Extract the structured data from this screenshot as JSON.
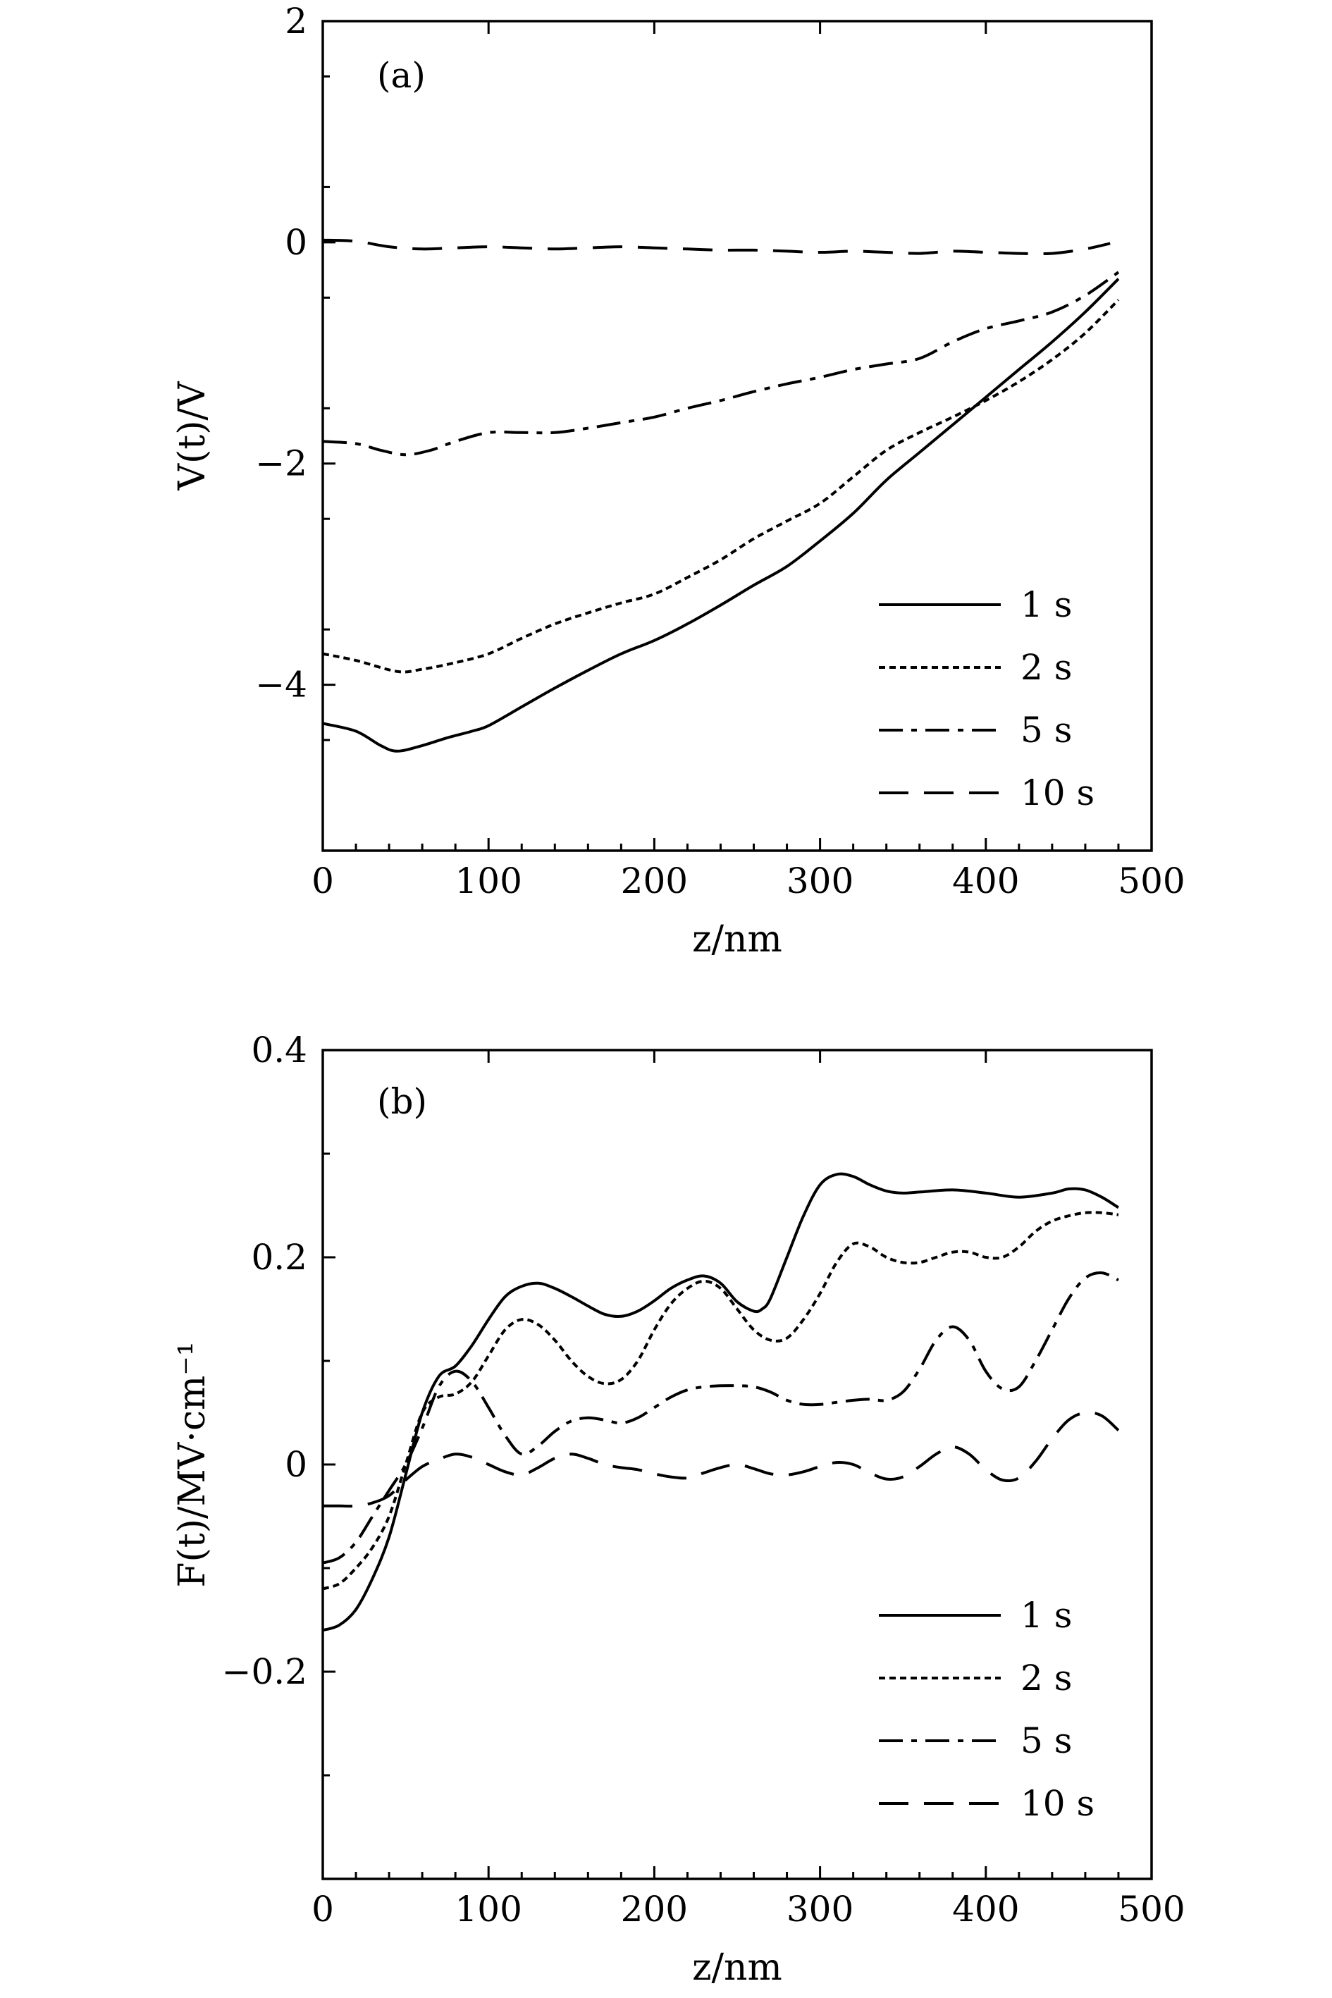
{
  "chart_data": [
    {
      "type": "line",
      "panel_label": "(a)",
      "xlabel": "z/nm",
      "ylabel": "V(t)/V",
      "xlim": [
        0,
        500
      ],
      "ylim": [
        -5.5,
        2
      ],
      "x_ticks": [
        0,
        100,
        200,
        300,
        400,
        500
      ],
      "y_ticks": [
        2,
        0,
        -2,
        -4
      ],
      "x_tick_labels": [
        "0",
        "100",
        "200",
        "300",
        "400",
        "500"
      ],
      "y_tick_labels": [
        "2",
        "0",
        "−2",
        "−4"
      ],
      "grid": false,
      "legend_position": "bottom-right",
      "series": [
        {
          "name": "1 s",
          "style": "solid",
          "x": [
            0,
            20,
            35,
            45,
            60,
            75,
            90,
            100,
            120,
            140,
            160,
            180,
            200,
            220,
            240,
            260,
            280,
            300,
            320,
            340,
            360,
            380,
            400,
            420,
            440,
            460,
            480
          ],
          "y": [
            -4.35,
            -4.42,
            -4.55,
            -4.6,
            -4.55,
            -4.48,
            -4.42,
            -4.37,
            -4.2,
            -4.03,
            -3.87,
            -3.72,
            -3.6,
            -3.45,
            -3.28,
            -3.1,
            -2.93,
            -2.7,
            -2.45,
            -2.15,
            -1.9,
            -1.65,
            -1.4,
            -1.15,
            -0.9,
            -0.63,
            -0.33
          ]
        },
        {
          "name": "2 s",
          "style": "dotted",
          "x": [
            0,
            20,
            45,
            60,
            80,
            100,
            120,
            140,
            160,
            180,
            200,
            220,
            240,
            260,
            280,
            300,
            320,
            340,
            360,
            380,
            400,
            420,
            440,
            460,
            480
          ],
          "y": [
            -3.72,
            -3.78,
            -3.88,
            -3.86,
            -3.8,
            -3.72,
            -3.58,
            -3.45,
            -3.35,
            -3.26,
            -3.18,
            -3.03,
            -2.87,
            -2.68,
            -2.52,
            -2.36,
            -2.12,
            -1.88,
            -1.72,
            -1.58,
            -1.43,
            -1.26,
            -1.06,
            -0.82,
            -0.52
          ]
        },
        {
          "name": "5 s",
          "style": "dashdot",
          "x": [
            0,
            20,
            35,
            50,
            65,
            80,
            100,
            120,
            140,
            160,
            180,
            200,
            220,
            240,
            260,
            280,
            300,
            320,
            340,
            360,
            380,
            400,
            420,
            440,
            460,
            480
          ],
          "y": [
            -1.8,
            -1.82,
            -1.88,
            -1.92,
            -1.88,
            -1.8,
            -1.72,
            -1.72,
            -1.72,
            -1.68,
            -1.63,
            -1.58,
            -1.5,
            -1.43,
            -1.35,
            -1.28,
            -1.22,
            -1.15,
            -1.1,
            -1.05,
            -0.9,
            -0.78,
            -0.71,
            -0.63,
            -0.48,
            -0.27
          ]
        },
        {
          "name": "10 s",
          "style": "dashed",
          "x": [
            0,
            20,
            40,
            60,
            80,
            100,
            120,
            140,
            160,
            180,
            200,
            220,
            240,
            260,
            280,
            300,
            320,
            340,
            360,
            380,
            400,
            420,
            440,
            460,
            475
          ],
          "y": [
            0.02,
            0.01,
            -0.04,
            -0.06,
            -0.05,
            -0.04,
            -0.05,
            -0.06,
            -0.05,
            -0.04,
            -0.05,
            -0.06,
            -0.07,
            -0.07,
            -0.08,
            -0.09,
            -0.08,
            -0.09,
            -0.1,
            -0.08,
            -0.09,
            -0.1,
            -0.1,
            -0.06,
            -0.01
          ]
        }
      ]
    },
    {
      "type": "line",
      "panel_label": "(b)",
      "xlabel": "z/nm",
      "ylabel": "F(t)/MV·cm⁻¹",
      "xlim": [
        0,
        500
      ],
      "ylim": [
        -0.4,
        0.4
      ],
      "x_ticks": [
        0,
        100,
        200,
        300,
        400,
        500
      ],
      "y_ticks": [
        0.4,
        0.2,
        0,
        -0.2
      ],
      "x_tick_labels": [
        "0",
        "100",
        "200",
        "300",
        "400",
        "500"
      ],
      "y_tick_labels": [
        "0.4",
        "0.2",
        "0",
        "−0.2"
      ],
      "grid": false,
      "legend_position": "bottom-right",
      "series": [
        {
          "name": "1 s",
          "style": "solid",
          "x": [
            0,
            10,
            20,
            30,
            40,
            50,
            60,
            70,
            80,
            90,
            100,
            110,
            120,
            130,
            140,
            150,
            160,
            170,
            180,
            190,
            200,
            210,
            220,
            230,
            240,
            250,
            260,
            265,
            270,
            280,
            290,
            300,
            310,
            320,
            330,
            340,
            350,
            360,
            380,
            400,
            420,
            440,
            450,
            460,
            470,
            480
          ],
          "y": [
            -0.16,
            -0.155,
            -0.14,
            -0.11,
            -0.07,
            -0.01,
            0.05,
            0.085,
            0.095,
            0.115,
            0.14,
            0.162,
            0.172,
            0.175,
            0.17,
            0.162,
            0.153,
            0.145,
            0.143,
            0.148,
            0.158,
            0.17,
            0.178,
            0.182,
            0.175,
            0.157,
            0.148,
            0.15,
            0.16,
            0.2,
            0.24,
            0.27,
            0.28,
            0.278,
            0.27,
            0.264,
            0.262,
            0.263,
            0.265,
            0.262,
            0.258,
            0.262,
            0.266,
            0.265,
            0.258,
            0.248
          ]
        },
        {
          "name": "2 s",
          "style": "dotted",
          "x": [
            0,
            10,
            20,
            30,
            40,
            50,
            60,
            70,
            80,
            90,
            100,
            110,
            120,
            130,
            140,
            150,
            160,
            170,
            180,
            190,
            200,
            210,
            220,
            230,
            240,
            250,
            260,
            270,
            280,
            290,
            300,
            310,
            320,
            330,
            340,
            350,
            360,
            370,
            380,
            390,
            400,
            410,
            420,
            430,
            440,
            450,
            460,
            470,
            480
          ],
          "y": [
            -0.12,
            -0.115,
            -0.1,
            -0.08,
            -0.05,
            0.0,
            0.05,
            0.065,
            0.068,
            0.08,
            0.105,
            0.13,
            0.14,
            0.135,
            0.12,
            0.1,
            0.085,
            0.078,
            0.082,
            0.1,
            0.13,
            0.155,
            0.17,
            0.177,
            0.17,
            0.15,
            0.13,
            0.12,
            0.122,
            0.14,
            0.165,
            0.195,
            0.213,
            0.21,
            0.2,
            0.195,
            0.195,
            0.2,
            0.205,
            0.205,
            0.2,
            0.2,
            0.21,
            0.225,
            0.235,
            0.24,
            0.243,
            0.243,
            0.241
          ]
        },
        {
          "name": "5 s",
          "style": "dashdot",
          "x": [
            0,
            10,
            20,
            30,
            40,
            50,
            60,
            70,
            80,
            90,
            100,
            110,
            120,
            130,
            140,
            150,
            160,
            170,
            180,
            190,
            200,
            210,
            220,
            230,
            240,
            250,
            260,
            270,
            280,
            290,
            300,
            310,
            320,
            330,
            340,
            350,
            360,
            370,
            380,
            390,
            400,
            410,
            420,
            430,
            440,
            450,
            460,
            470,
            480
          ],
          "y": [
            -0.095,
            -0.09,
            -0.075,
            -0.05,
            -0.025,
            0.0,
            0.035,
            0.075,
            0.09,
            0.08,
            0.055,
            0.028,
            0.01,
            0.018,
            0.032,
            0.042,
            0.045,
            0.043,
            0.04,
            0.045,
            0.055,
            0.065,
            0.072,
            0.075,
            0.076,
            0.076,
            0.075,
            0.07,
            0.062,
            0.058,
            0.058,
            0.06,
            0.062,
            0.063,
            0.062,
            0.07,
            0.092,
            0.12,
            0.133,
            0.12,
            0.09,
            0.073,
            0.075,
            0.1,
            0.13,
            0.16,
            0.18,
            0.185,
            0.178
          ]
        },
        {
          "name": "10 s",
          "style": "dashed",
          "x": [
            0,
            10,
            20,
            30,
            40,
            50,
            60,
            70,
            80,
            90,
            100,
            110,
            120,
            130,
            140,
            150,
            160,
            170,
            180,
            190,
            200,
            210,
            220,
            230,
            240,
            250,
            260,
            270,
            280,
            290,
            300,
            310,
            320,
            330,
            340,
            350,
            360,
            370,
            380,
            390,
            400,
            410,
            420,
            430,
            440,
            450,
            460,
            470,
            480
          ],
          "y": [
            -0.04,
            -0.04,
            -0.04,
            -0.037,
            -0.03,
            -0.015,
            -0.002,
            0.005,
            0.01,
            0.007,
            0.0,
            -0.007,
            -0.01,
            -0.003,
            0.006,
            0.01,
            0.006,
            0.0,
            -0.003,
            -0.005,
            -0.009,
            -0.012,
            -0.013,
            -0.008,
            -0.003,
            0.0,
            -0.004,
            -0.009,
            -0.01,
            -0.007,
            -0.002,
            0.002,
            0.0,
            -0.008,
            -0.014,
            -0.012,
            -0.002,
            0.01,
            0.017,
            0.01,
            -0.005,
            -0.015,
            -0.013,
            0.003,
            0.025,
            0.043,
            0.05,
            0.047,
            0.033
          ]
        }
      ]
    }
  ]
}
